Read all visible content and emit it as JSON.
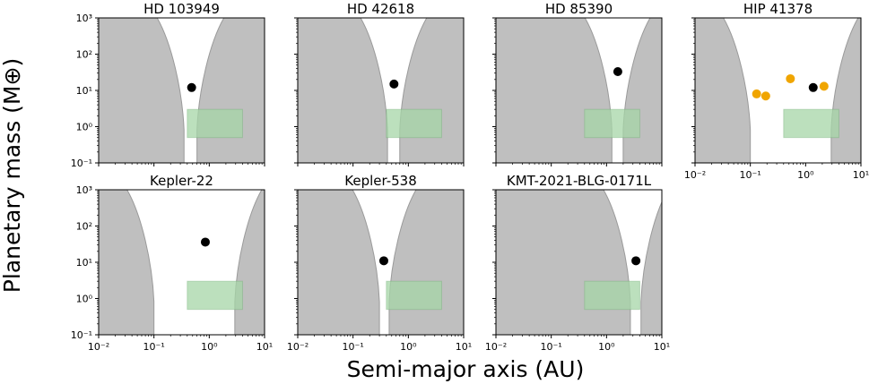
{
  "figure": {
    "ylabel": "Planetary mass (M⊕)",
    "xlabel": "Semi-major axis (AU)",
    "colors": {
      "excluded": "#bfbfbf",
      "excluded_edge": "#9a9a9a",
      "green_box": "#a5d6a7",
      "green_box_edge": "#6aa96e",
      "host_planet": "#000000",
      "extra_planets": "#f0a500"
    }
  },
  "chart_data": [
    {
      "type": "scatter",
      "title": "HD 103949",
      "xscale": "log",
      "yscale": "log",
      "xlim": [
        0.01,
        10
      ],
      "ylim": [
        0.1,
        1000
      ],
      "xticks": [],
      "yticks": [
        "10⁻¹",
        "10⁰",
        "10¹",
        "10²",
        "10³"
      ],
      "excluded_inner_edge_au": 0.35,
      "excluded_outer_edge_au": 0.6,
      "green_region": {
        "a_au": [
          0.4,
          4.0
        ],
        "mass_mearth": [
          0.5,
          3.0
        ]
      },
      "planets": [
        {
          "a_au": 0.48,
          "mass_mearth": 12,
          "color": "black"
        }
      ]
    },
    {
      "type": "scatter",
      "title": "HD 42618",
      "xscale": "log",
      "yscale": "log",
      "xlim": [
        0.01,
        10
      ],
      "ylim": [
        0.1,
        1000
      ],
      "xticks": [],
      "yticks": [],
      "excluded_inner_edge_au": 0.42,
      "excluded_outer_edge_au": 0.7,
      "green_region": {
        "a_au": [
          0.4,
          4.0
        ],
        "mass_mearth": [
          0.5,
          3.0
        ]
      },
      "planets": [
        {
          "a_au": 0.55,
          "mass_mearth": 15,
          "color": "black"
        }
      ]
    },
    {
      "type": "scatter",
      "title": "HD 85390",
      "xscale": "log",
      "yscale": "log",
      "xlim": [
        0.01,
        10
      ],
      "ylim": [
        0.1,
        1000
      ],
      "xticks": [],
      "yticks": [],
      "excluded_inner_edge_au": 1.25,
      "excluded_outer_edge_au": 2.0,
      "green_region": {
        "a_au": [
          0.4,
          4.0
        ],
        "mass_mearth": [
          0.5,
          3.0
        ]
      },
      "planets": [
        {
          "a_au": 1.6,
          "mass_mearth": 33,
          "color": "black"
        }
      ]
    },
    {
      "type": "scatter",
      "title": "HIP 41378",
      "xscale": "log",
      "yscale": "log",
      "xlim": [
        0.01,
        10
      ],
      "ylim": [
        0.1,
        1000
      ],
      "xticks": [
        "10⁻²",
        "10⁻¹",
        "10⁰",
        "10¹"
      ],
      "yticks": [],
      "excluded_inner_edge_au": 0.1,
      "excluded_outer_edge_au": 2.9,
      "green_region": {
        "a_au": [
          0.4,
          4.0
        ],
        "mass_mearth": [
          0.5,
          3.0
        ]
      },
      "planets": [
        {
          "a_au": 0.13,
          "mass_mearth": 8,
          "color": "orange"
        },
        {
          "a_au": 0.19,
          "mass_mearth": 7,
          "color": "orange"
        },
        {
          "a_au": 0.53,
          "mass_mearth": 21,
          "color": "orange"
        },
        {
          "a_au": 1.37,
          "mass_mearth": 12,
          "color": "black"
        },
        {
          "a_au": 2.15,
          "mass_mearth": 13,
          "color": "orange"
        }
      ]
    },
    {
      "type": "scatter",
      "title": "Kepler-22",
      "xscale": "log",
      "yscale": "log",
      "xlim": [
        0.01,
        10
      ],
      "ylim": [
        0.1,
        1000
      ],
      "xticks": [
        "10⁻²",
        "10⁻¹",
        "10⁰",
        "10¹"
      ],
      "yticks": [
        "10⁻¹",
        "10⁰",
        "10¹",
        "10²",
        "10³"
      ],
      "excluded_inner_edge_au": 0.1,
      "excluded_outer_edge_au": 2.9,
      "green_region": {
        "a_au": [
          0.4,
          4.0
        ],
        "mass_mearth": [
          0.5,
          3.0
        ]
      },
      "planets": [
        {
          "a_au": 0.85,
          "mass_mearth": 36,
          "color": "black"
        }
      ]
    },
    {
      "type": "scatter",
      "title": "Kepler-538",
      "xscale": "log",
      "yscale": "log",
      "xlim": [
        0.01,
        10
      ],
      "ylim": [
        0.1,
        1000
      ],
      "xticks": [
        "10⁻²",
        "10⁻¹",
        "10⁰",
        "10¹"
      ],
      "yticks": [],
      "excluded_inner_edge_au": 0.3,
      "excluded_outer_edge_au": 0.45,
      "green_region": {
        "a_au": [
          0.4,
          4.0
        ],
        "mass_mearth": [
          0.5,
          3.0
        ]
      },
      "planets": [
        {
          "a_au": 0.36,
          "mass_mearth": 11,
          "color": "black"
        }
      ]
    },
    {
      "type": "scatter",
      "title": "KMT-2021-BLG-0171L",
      "xscale": "log",
      "yscale": "log",
      "xlim": [
        0.01,
        10
      ],
      "ylim": [
        0.1,
        1000
      ],
      "xticks": [
        "10⁻²",
        "10⁻¹",
        "10⁰",
        "10¹"
      ],
      "yticks": [],
      "excluded_inner_edge_au": 2.7,
      "excluded_outer_edge_au": 4.2,
      "green_region": {
        "a_au": [
          0.4,
          4.0
        ],
        "mass_mearth": [
          0.5,
          3.0
        ]
      },
      "planets": [
        {
          "a_au": 3.4,
          "mass_mearth": 11,
          "color": "black"
        }
      ]
    }
  ]
}
